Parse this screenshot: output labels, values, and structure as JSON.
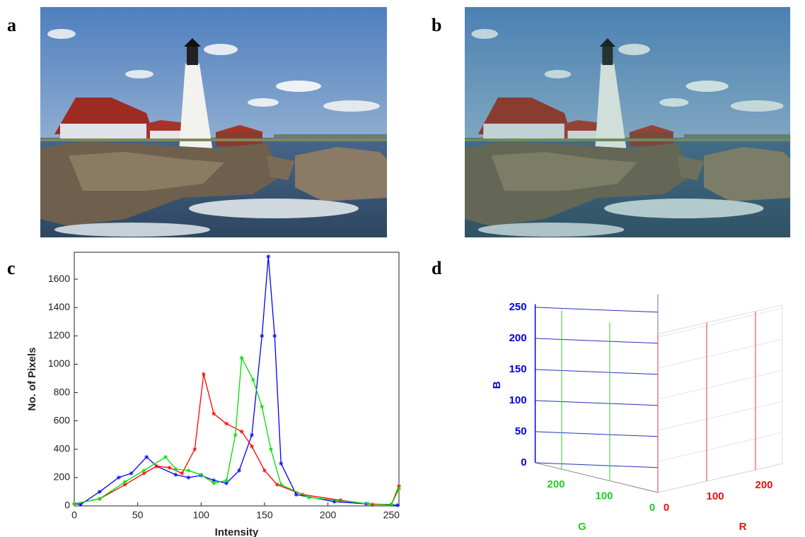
{
  "panel_labels": [
    "a",
    "b",
    "c",
    "d"
  ],
  "chart_data": [
    {
      "type": "line",
      "xlabel": "Intensity",
      "ylabel": "No. of Pixels",
      "xlim": [
        0,
        256
      ],
      "ylim": [
        0,
        1790
      ],
      "xticks": [
        0,
        50,
        100,
        150,
        200,
        250
      ],
      "yticks": [
        0,
        200,
        400,
        600,
        800,
        1000,
        1200,
        1400,
        1600
      ],
      "series": [
        {
          "color": "#0000ff",
          "x": [
            0,
            5,
            20,
            35,
            45,
            57,
            65,
            80,
            90,
            100,
            110,
            120,
            130,
            140,
            148,
            153,
            158,
            163,
            175,
            205,
            230,
            255
          ],
          "values": [
            15,
            10,
            100,
            200,
            230,
            345,
            280,
            220,
            200,
            215,
            180,
            160,
            250,
            500,
            1200,
            1760,
            1200,
            300,
            80,
            30,
            15,
            5
          ]
        },
        {
          "color": "#ff0000",
          "x": [
            0,
            20,
            40,
            55,
            65,
            75,
            85,
            95,
            102,
            110,
            120,
            132,
            140,
            150,
            160,
            180,
            210,
            235,
            250,
            256
          ],
          "values": [
            15,
            50,
            150,
            230,
            280,
            270,
            230,
            400,
            930,
            650,
            580,
            525,
            420,
            250,
            150,
            80,
            40,
            10,
            10,
            140
          ]
        },
        {
          "color": "#00dd00",
          "x": [
            0,
            20,
            40,
            55,
            72,
            80,
            90,
            100,
            110,
            120,
            127,
            132,
            141,
            148,
            155,
            163,
            185,
            232,
            250,
            256
          ],
          "values": [
            15,
            50,
            170,
            250,
            345,
            260,
            250,
            220,
            160,
            180,
            500,
            1045,
            890,
            700,
            400,
            150,
            60,
            15,
            10,
            120
          ]
        }
      ]
    },
    {
      "type": "scatter3d",
      "xlabel": "R",
      "ylabel": "G",
      "zlabel": "B",
      "xlim": [
        0,
        255
      ],
      "ylim": [
        0,
        255
      ],
      "zlim": [
        0,
        255
      ],
      "xticks": [
        0,
        100,
        200
      ],
      "yticks": [
        0,
        100,
        200
      ],
      "zticks": [
        0,
        50,
        100,
        150,
        200,
        250
      ]
    }
  ]
}
